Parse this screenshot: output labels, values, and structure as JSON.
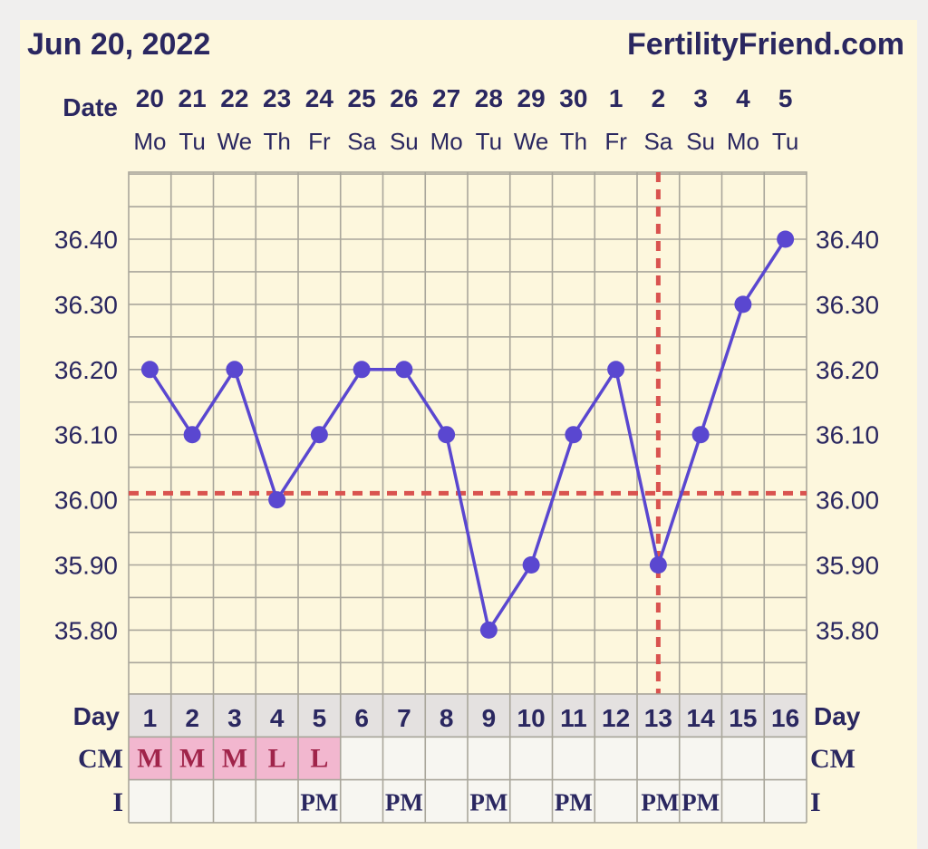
{
  "header": {
    "date_title": "Jun 20, 2022",
    "brand": "FertilityFriend.com"
  },
  "labels": {
    "date": "Date",
    "day": "Day",
    "cm": "CM",
    "intercourse": "I"
  },
  "colors": {
    "page_background": "#fdf7dd",
    "outer_background": "#f0efee",
    "text": "#2a2760",
    "grid": "#a9a69b",
    "line": "#5a47d0",
    "coverline": "#d9534f",
    "cm_fill": "#f2b7cf",
    "cm_text": "#a0244a",
    "day_row_fill": "#e4e1e0",
    "table_fill": "#f7f6f1"
  },
  "chart_data": {
    "type": "line",
    "title": "Jun 20, 2022",
    "subtitle": "FertilityFriend.com",
    "dates": [
      "20",
      "21",
      "22",
      "23",
      "24",
      "25",
      "26",
      "27",
      "28",
      "29",
      "30",
      "1",
      "2",
      "3",
      "4",
      "5"
    ],
    "weekdays": [
      "Mo",
      "Tu",
      "We",
      "Th",
      "Fr",
      "Sa",
      "Su",
      "Mo",
      "Tu",
      "We",
      "Th",
      "Fr",
      "Sa",
      "Su",
      "Mo",
      "Tu"
    ],
    "cycle_days": [
      1,
      2,
      3,
      4,
      5,
      6,
      7,
      8,
      9,
      10,
      11,
      12,
      13,
      14,
      15,
      16
    ],
    "series": [
      {
        "values": [
          36.2,
          36.1,
          36.2,
          36.0,
          36.1,
          36.2,
          36.2,
          36.1,
          35.8,
          35.9,
          36.1,
          36.2,
          35.9,
          36.1,
          36.3,
          36.4
        ]
      }
    ],
    "y_ticks": [
      "36.40",
      "36.30",
      "36.20",
      "36.10",
      "36.00",
      "35.90",
      "35.80"
    ],
    "ylim": [
      35.74,
      36.49
    ],
    "coverline": 36.01,
    "ovulation_day": 13,
    "cervical_mucus": [
      "M",
      "M",
      "M",
      "L",
      "L",
      "",
      "",
      "",
      "",
      "",
      "",
      "",
      "",
      "",
      "",
      ""
    ],
    "intercourse": [
      "",
      "",
      "",
      "",
      "PM",
      "",
      "PM",
      "",
      "PM",
      "",
      "PM",
      "",
      "PM",
      "PM",
      "",
      ""
    ],
    "grid": true
  }
}
